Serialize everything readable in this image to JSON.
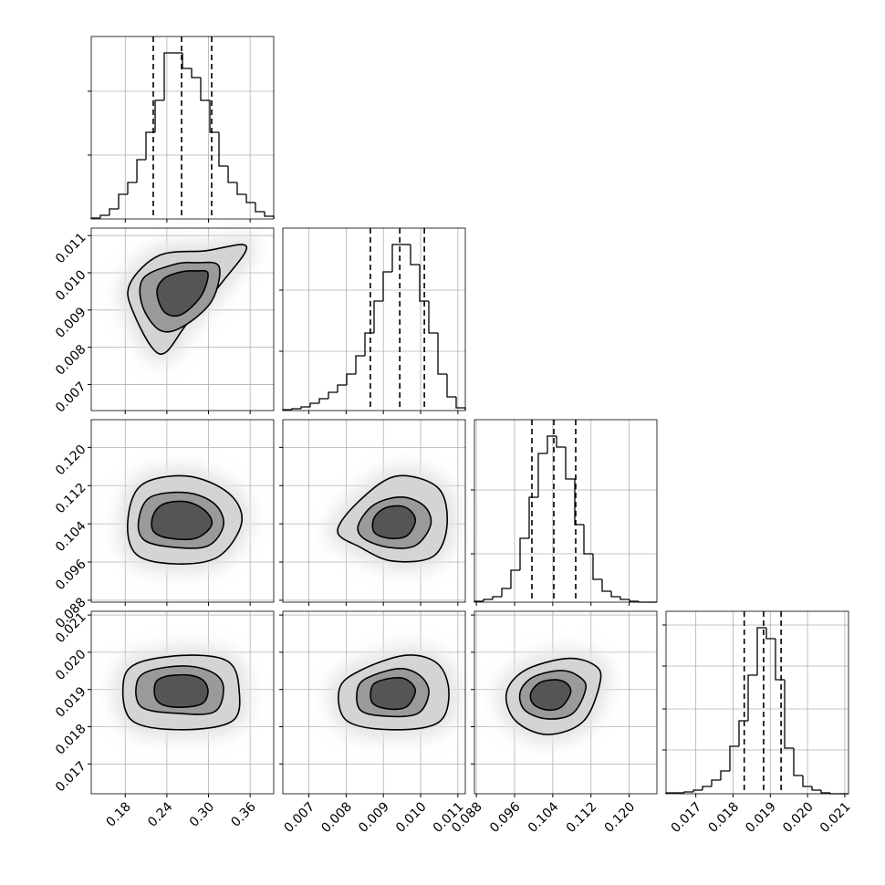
{
  "chart_data": {
    "type": "corner",
    "grid": true,
    "color": "#000000",
    "params": [
      {
        "lim": [
          0.131,
          0.394
        ],
        "ticks": [
          0.18,
          0.24,
          {
            "value": 0.3,
            "label": "0.30"
          },
          0.36
        ],
        "hist": {
          "bins": [
            0.131,
            0.1442,
            0.1573,
            0.1705,
            0.1836,
            0.1968,
            0.2099,
            0.2231,
            0.2362,
            0.2494,
            0.2625,
            0.2757,
            0.2888,
            0.302,
            0.3151,
            0.3283,
            0.3414,
            0.3546,
            0.3677,
            0.3809,
            0.394
          ],
          "counts": [
            1,
            4,
            11,
            27,
            40,
            65,
            95,
            130,
            182,
            182,
            165,
            155,
            130,
            95,
            58,
            40,
            27,
            18,
            8,
            3
          ],
          "ylim": [
            0,
            200
          ],
          "yticks": [
            70,
            140
          ]
        },
        "quantiles": [
          0.2204,
          0.2612,
          0.3046
        ]
      },
      {
        "lim": [
          0.0063,
          0.0112
        ],
        "ticks": [
          0.007,
          0.008,
          0.009,
          {
            "value": 0.01,
            "label": "0.010"
          },
          0.011
        ],
        "hist": {
          "bins": [
            0.0063,
            0.006545,
            0.00679,
            0.007035,
            0.00728,
            0.007525,
            0.00777,
            0.008015,
            0.00826,
            0.008505,
            0.00875,
            0.008995,
            0.00924,
            0.009485,
            0.00973,
            0.009975,
            0.01022,
            0.010465,
            0.01071,
            0.010955,
            0.0112
          ],
          "counts": [
            1,
            2,
            4,
            8,
            13,
            20,
            28,
            40,
            60,
            85,
            120,
            152,
            182,
            182,
            160,
            120,
            85,
            40,
            15,
            3
          ],
          "ylim": [
            0,
            200
          ],
          "yticks": [
            65,
            132
          ]
        },
        "quantiles": [
          0.00865,
          0.00944,
          0.0101
        ]
      },
      {
        "lim": [
          0.0876,
          0.1258
        ],
        "ticks": [
          0.088,
          0.096,
          0.104,
          0.112,
          {
            "value": 0.12,
            "label": "0.120"
          }
        ],
        "hist": {
          "bins": [
            0.0876,
            0.08951,
            0.09142,
            0.09333,
            0.09524,
            0.09715,
            0.09906,
            0.10097,
            0.10288,
            0.10479,
            0.1067,
            0.10861,
            0.11052,
            0.11243,
            0.11434,
            0.11625,
            0.11816,
            0.12007,
            0.12198,
            0.12389,
            0.1258
          ],
          "counts": [
            1,
            3,
            6,
            15,
            35,
            70,
            115,
            163,
            182,
            170,
            135,
            85,
            53,
            25,
            12,
            6,
            3,
            1,
            0,
            0
          ],
          "ylim": [
            0,
            200
          ],
          "yticks": [
            53,
            123
          ]
        },
        "quantiles": [
          0.09963,
          0.10422,
          0.1088
        ]
      },
      {
        "lim": [
          0.0162,
          0.0211
        ],
        "ticks": [
          0.017,
          0.018,
          0.019,
          {
            "value": 0.02,
            "label": "0.020"
          },
          0.021
        ],
        "hist": {
          "bins": [
            0.0162,
            0.016445,
            0.01669,
            0.016935,
            0.01718,
            0.017425,
            0.01767,
            0.017915,
            0.01816,
            0.018405,
            0.01865,
            0.018895,
            0.01914,
            0.019385,
            0.01963,
            0.019875,
            0.02012,
            0.020365,
            0.02061,
            0.020855,
            0.0211
          ],
          "counts": [
            1,
            1,
            2,
            4,
            8,
            15,
            25,
            52,
            80,
            130,
            182,
            170,
            125,
            50,
            20,
            8,
            4,
            1,
            0,
            0
          ],
          "ylim": [
            0,
            200
          ],
          "yticks": [
            48,
            93,
            140,
            185
          ]
        },
        "quantiles": [
          0.0183,
          0.01882,
          0.01929
        ]
      }
    ],
    "panels": [
      [
        {
          "contours": [
            {
              "x": [
                0.1875,
                0.2296,
                0.2954,
                0.3546,
                0.319,
                0.2691,
                0.2296,
                0.1902
              ],
              "y": [
                0.00973,
                0.01047,
                0.01059,
                0.01071,
                0.00973,
                0.00863,
                0.00782,
                0.009
              ]
            },
            {
              "x": [
                0.3151,
                0.3046,
                0.2625,
                0.2296,
                0.2046,
                0.206,
                0.2494,
                0.2822
              ],
              "y": [
                0.01017,
                0.00924,
                0.00855,
                0.00846,
                0.00912,
                0.00985,
                0.01022,
                0.01027
              ]
            },
            {
              "x": [
                0.2993,
                0.2888,
                0.2599,
                0.2362,
                0.2257,
                0.2362,
                0.2599,
                0.2822
              ],
              "y": [
                0.00998,
                0.00936,
                0.00887,
                0.00895,
                0.00949,
                0.00985,
                0.01002,
                0.01005
              ]
            }
          ]
        }
      ],
      [
        {
          "contours": [
            {
              "x": [
                0.348,
                0.3151,
                0.2559,
                0.1968,
                0.1836,
                0.2033,
                0.2691,
                0.3283
              ],
              "y": [
                0.1044,
                0.0972,
                0.0956,
                0.0975,
                0.1044,
                0.1121,
                0.114,
                0.1105
              ]
            },
            {
              "x": [
                0.3217,
                0.2993,
                0.2494,
                0.2073,
                0.1994,
                0.2165,
                0.2691,
                0.3085
              ],
              "y": [
                0.1038,
                0.0994,
                0.0991,
                0.1006,
                0.1048,
                0.1096,
                0.1105,
                0.1082
              ]
            },
            {
              "x": [
                0.3046,
                0.2822,
                0.2428,
                0.2204,
                0.2204,
                0.2362,
                0.2691,
                0.2954
              ],
              "y": [
                0.1038,
                0.101,
                0.101,
                0.1025,
                0.1058,
                0.1082,
                0.1086,
                0.1067
              ]
            }
          ]
        },
        {
          "contours": [
            {
              "x": [
                0.01071,
                0.01034,
                0.00924,
                0.00838,
                0.00777,
                0.00838,
                0.00936,
                0.01047
              ],
              "y": [
                0.1038,
                0.0972,
                0.0962,
                0.0991,
                0.1025,
                0.109,
                0.114,
                0.1115
              ]
            },
            {
              "x": [
                0.01027,
                0.00985,
                0.00912,
                0.00846,
                0.00833,
                0.00875,
                0.00949,
                0.0101
              ],
              "y": [
                0.1038,
                0.0994,
                0.0991,
                0.101,
                0.1038,
                0.108,
                0.1096,
                0.1077
              ]
            },
            {
              "x": [
                0.00985,
                0.00961,
                0.00912,
                0.00875,
                0.00875,
                0.00904,
                0.00949,
                0.00978
              ],
              "y": [
                0.1042,
                0.1014,
                0.101,
                0.1023,
                0.1052,
                0.1073,
                0.1077,
                0.1063
              ]
            }
          ]
        }
      ],
      [
        {
          "contours": [
            {
              "x": [
                0.344,
                0.3348,
                0.2625,
                0.1902,
                0.177,
                0.1968,
                0.2691,
                0.3283
              ],
              "y": [
                0.01902,
                0.01816,
                0.01792,
                0.01816,
                0.01914,
                0.0197,
                0.01992,
                0.01975
              ]
            },
            {
              "x": [
                0.3217,
                0.3085,
                0.2559,
                0.2033,
                0.1968,
                0.2165,
                0.2691,
                0.3085
              ],
              "y": [
                0.01902,
                0.0184,
                0.01836,
                0.01853,
                0.01919,
                0.01951,
                0.01963,
                0.01943
              ]
            },
            {
              "x": [
                0.2993,
                0.2888,
                0.2494,
                0.2257,
                0.223,
                0.2362,
                0.2691,
                0.2914
              ],
              "y": [
                0.01894,
                0.0186,
                0.01853,
                0.0187,
                0.01914,
                0.01934,
                0.01939,
                0.01926
              ]
            }
          ]
        },
        {
          "contours": [
            {
              "x": [
                0.01076,
                0.01047,
                0.00924,
                0.00802,
                0.00782,
                0.00838,
                0.00961,
                0.01047
              ],
              "y": [
                0.0189,
                0.01811,
                0.01792,
                0.01816,
                0.01902,
                0.01951,
                0.01992,
                0.01968
              ]
            },
            {
              "x": [
                0.01022,
                0.00993,
                0.00912,
                0.00838,
                0.00833,
                0.00875,
                0.00949,
                0.01002
              ],
              "y": [
                0.0189,
                0.01836,
                0.01828,
                0.01845,
                0.01909,
                0.01939,
                0.01956,
                0.01934
              ]
            },
            {
              "x": [
                0.00985,
                0.00961,
                0.00912,
                0.0087,
                0.0087,
                0.009,
                0.00949,
                0.00978
              ],
              "y": [
                0.0189,
                0.01853,
                0.01848,
                0.01865,
                0.01909,
                0.01926,
                0.01931,
                0.01914
              ]
            }
          ]
        },
        {
          "contours": [
            {
              "x": [
                0.114,
                0.1105,
                0.1029,
                0.0962,
                0.0943,
                0.0981,
                0.1067,
                0.1124
              ],
              "y": [
                0.01926,
                0.01816,
                0.01779,
                0.01816,
                0.0189,
                0.01951,
                0.01983,
                0.01968
              ]
            },
            {
              "x": [
                0.1109,
                0.1082,
                0.1029,
                0.0981,
                0.0972,
                0.1,
                0.1058,
                0.1096
              ],
              "y": [
                0.01902,
                0.01836,
                0.01821,
                0.01845,
                0.01894,
                0.01934,
                0.01951,
                0.01934
              ]
            },
            {
              "x": [
                0.1077,
                0.1058,
                0.1029,
                0.1,
                0.0994,
                0.1014,
                0.1048,
                0.1071
              ],
              "y": [
                0.0189,
                0.01853,
                0.01845,
                0.0186,
                0.0189,
                0.01919,
                0.01926,
                0.01914
              ]
            }
          ]
        }
      ]
    ]
  }
}
